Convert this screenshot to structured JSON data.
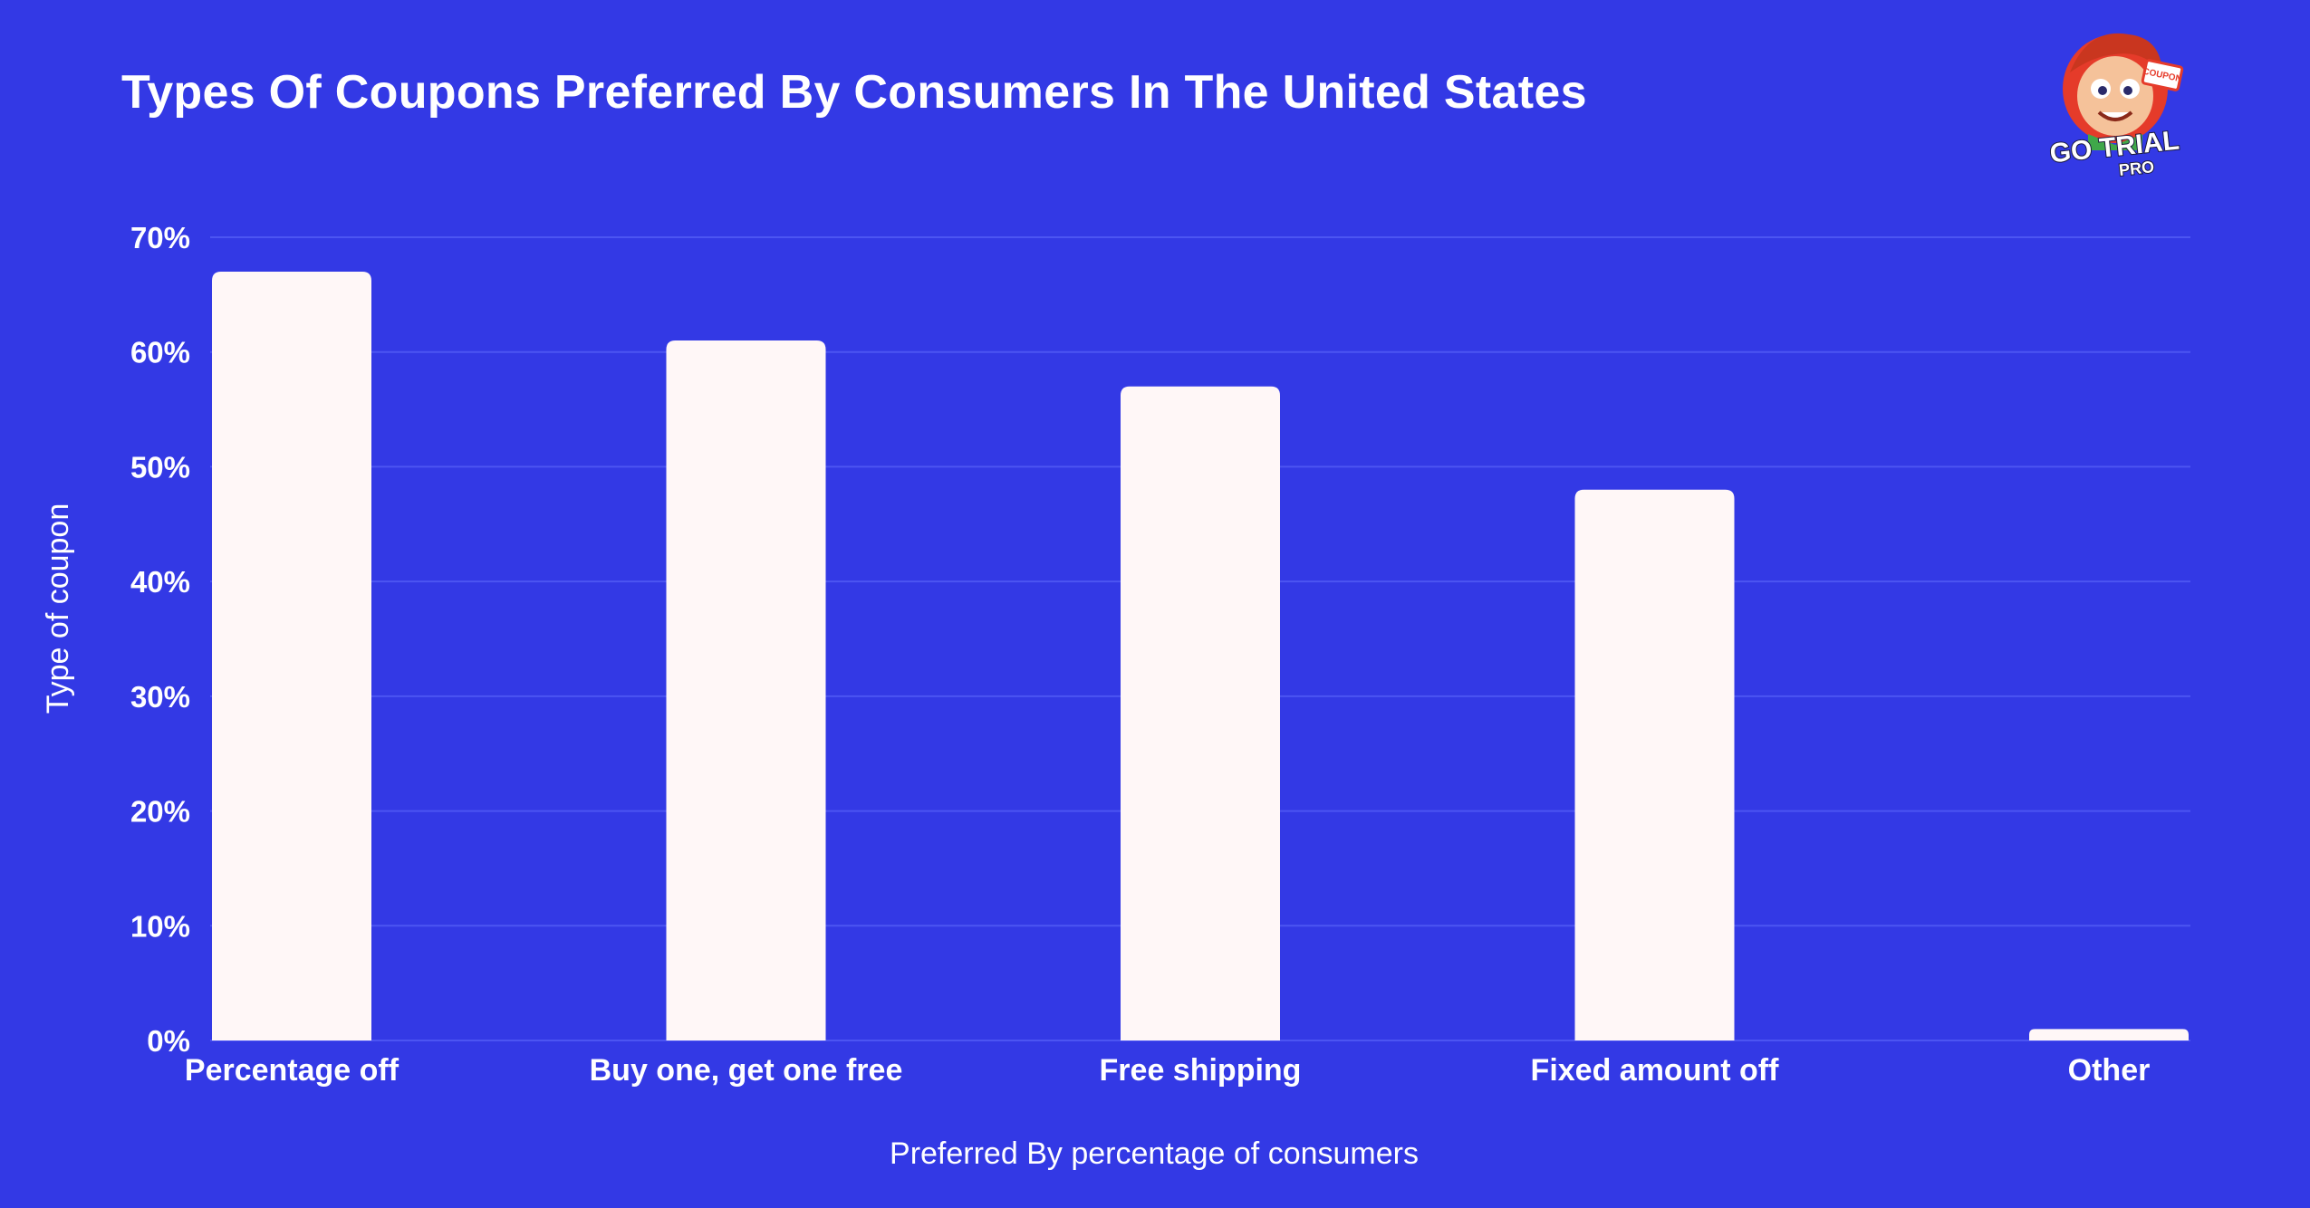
{
  "title": "Types Of Coupons Preferred By Consumers In The United States",
  "logo": {
    "icon": "mascot-logo-icon",
    "text_main": "GO TRIAL",
    "text_sub": "PRO",
    "badge": "COUPON"
  },
  "colors": {
    "background": "#3339E5",
    "bar": "#FFF7F7",
    "gridline": "#4C55F2",
    "text": "#FFFFFF"
  },
  "chart_data": {
    "type": "bar",
    "title": "Types Of Coupons Preferred By Consumers In The United States",
    "xlabel": "Preferred By percentage of consumers",
    "ylabel": "Type of coupon",
    "categories": [
      "Percentage off",
      "Buy one, get one free",
      "Free shipping",
      "Fixed amount off",
      "Other"
    ],
    "values": [
      67,
      61,
      57,
      48,
      1
    ],
    "ylim": [
      0,
      70
    ],
    "yticks": [
      "0%",
      "10%",
      "20%",
      "30%",
      "40%",
      "50%",
      "60%",
      "70%"
    ],
    "grid": true,
    "legend": "none"
  }
}
